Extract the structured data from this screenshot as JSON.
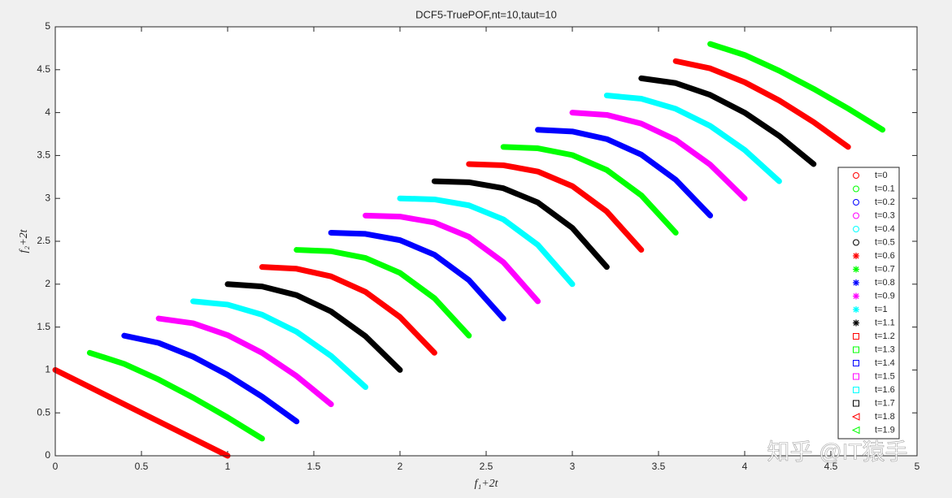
{
  "chart_data": {
    "type": "line",
    "title": "DCF5-TruePOF,nt=10,taut=10",
    "xlabel": "f₁+2t",
    "ylabel": "f₂+2t",
    "xlim": [
      0,
      5
    ],
    "ylim": [
      0,
      5
    ],
    "xticks": [
      0,
      0.5,
      1,
      1.5,
      2,
      2.5,
      3,
      3.5,
      4,
      4.5,
      5
    ],
    "yticks": [
      0,
      0.5,
      1,
      1.5,
      2,
      2.5,
      3,
      3.5,
      4,
      4.5,
      5
    ],
    "legend": "right",
    "watermark": "知乎 @IT猿手",
    "series": [
      {
        "name": "t=0",
        "color": "#ff0000",
        "marker": "circle",
        "x": [
          0,
          0.2,
          0.4,
          0.6,
          0.8,
          1
        ],
        "values": [
          1,
          0.8,
          0.6,
          0.4,
          0.2,
          0
        ]
      },
      {
        "name": "t=0.1",
        "color": "#00ff00",
        "marker": "circle",
        "x": [
          0.2,
          0.4,
          0.6,
          0.8,
          1,
          1.2
        ],
        "values": [
          1.2,
          1.071,
          0.888,
          0.677,
          0.447,
          0.2
        ]
      },
      {
        "name": "t=0.2",
        "color": "#0000ff",
        "marker": "circle",
        "x": [
          0.4,
          0.6,
          0.8,
          1,
          1.2,
          1.4
        ],
        "values": [
          1.4,
          1.315,
          1.154,
          0.942,
          0.689,
          0.4
        ]
      },
      {
        "name": "t=0.3",
        "color": "#ff00ff",
        "marker": "circle",
        "x": [
          0.6,
          0.8,
          1,
          1.2,
          1.4,
          1.6
        ],
        "values": [
          1.6,
          1.544,
          1.406,
          1.199,
          0.929,
          0.6
        ]
      },
      {
        "name": "t=0.4",
        "color": "#00ffff",
        "marker": "circle",
        "x": [
          0.8,
          1,
          1.2,
          1.4,
          1.6,
          1.8
        ],
        "values": [
          1.8,
          1.762,
          1.644,
          1.445,
          1.164,
          0.8
        ]
      },
      {
        "name": "t=0.5",
        "color": "#000000",
        "marker": "circle",
        "x": [
          1,
          1.2,
          1.4,
          1.6,
          1.8,
          2
        ],
        "values": [
          2,
          1.973,
          1.872,
          1.682,
          1.393,
          1
        ]
      },
      {
        "name": "t=0.6",
        "color": "#ff0000",
        "marker": "star",
        "x": [
          1.2,
          1.4,
          1.6,
          1.8,
          2,
          2.2
        ],
        "values": [
          2.2,
          2.18,
          2.091,
          1.91,
          1.617,
          1.2
        ]
      },
      {
        "name": "t=0.7",
        "color": "#00ff00",
        "marker": "star",
        "x": [
          1.4,
          1.6,
          1.8,
          2,
          2.2,
          2.4
        ],
        "values": [
          2.4,
          2.384,
          2.305,
          2.131,
          1.836,
          1.4
        ]
      },
      {
        "name": "t=0.8",
        "color": "#0000ff",
        "marker": "star",
        "x": [
          1.6,
          1.8,
          2,
          2.2,
          2.4,
          2.6
        ],
        "values": [
          2.6,
          2.586,
          2.513,
          2.343,
          2.047,
          1.6
        ]
      },
      {
        "name": "t=0.9",
        "color": "#ff00ff",
        "marker": "star",
        "x": [
          1.8,
          2,
          2.2,
          2.4,
          2.6,
          2.8
        ],
        "values": [
          2.8,
          2.788,
          2.718,
          2.552,
          2.256,
          1.8
        ]
      },
      {
        "name": "t=1",
        "color": "#00ffff",
        "marker": "star",
        "x": [
          2,
          2.2,
          2.4,
          2.6,
          2.8,
          3
        ],
        "values": [
          3,
          2.988,
          2.919,
          2.755,
          2.458,
          2
        ]
      },
      {
        "name": "t=1.1",
        "color": "#000000",
        "marker": "star",
        "x": [
          2.2,
          2.4,
          2.6,
          2.8,
          3,
          3.2
        ],
        "values": [
          3.2,
          3.188,
          3.118,
          2.952,
          2.656,
          2.2
        ]
      },
      {
        "name": "t=1.2",
        "color": "#ff0000",
        "marker": "square",
        "x": [
          2.4,
          2.6,
          2.8,
          3,
          3.2,
          3.4
        ],
        "values": [
          3.4,
          3.386,
          3.313,
          3.143,
          2.847,
          2.4
        ]
      },
      {
        "name": "t=1.3",
        "color": "#00ff00",
        "marker": "square",
        "x": [
          2.6,
          2.8,
          3,
          3.2,
          3.4,
          3.6
        ],
        "values": [
          3.6,
          3.584,
          3.505,
          3.331,
          3.036,
          2.6
        ]
      },
      {
        "name": "t=1.4",
        "color": "#0000ff",
        "marker": "square",
        "x": [
          2.8,
          3,
          3.2,
          3.4,
          3.6,
          3.8
        ],
        "values": [
          3.8,
          3.78,
          3.691,
          3.51,
          3.217,
          2.8
        ]
      },
      {
        "name": "t=1.5",
        "color": "#ff00ff",
        "marker": "square",
        "x": [
          3,
          3.2,
          3.4,
          3.6,
          3.8,
          4
        ],
        "values": [
          4,
          3.973,
          3.872,
          3.682,
          3.393,
          3
        ]
      },
      {
        "name": "t=1.6",
        "color": "#00ffff",
        "marker": "square",
        "x": [
          3.2,
          3.4,
          3.6,
          3.8,
          4,
          4.2
        ],
        "values": [
          4.2,
          4.162,
          4.044,
          3.845,
          3.564,
          3.2
        ]
      },
      {
        "name": "t=1.7",
        "color": "#000000",
        "marker": "square",
        "x": [
          3.4,
          3.6,
          3.8,
          4,
          4.2,
          4.4
        ],
        "values": [
          4.4,
          4.344,
          4.206,
          3.999,
          3.729,
          3.4
        ]
      },
      {
        "name": "t=1.8",
        "color": "#ff0000",
        "marker": "triangle",
        "x": [
          3.6,
          3.8,
          4,
          4.2,
          4.4,
          4.6
        ],
        "values": [
          4.6,
          4.515,
          4.354,
          4.142,
          3.889,
          3.6
        ]
      },
      {
        "name": "t=1.9",
        "color": "#00ff00",
        "marker": "triangle",
        "x": [
          3.8,
          4,
          4.2,
          4.4,
          4.6,
          4.8
        ],
        "values": [
          4.8,
          4.671,
          4.488,
          4.277,
          4.047,
          3.8
        ]
      }
    ]
  }
}
